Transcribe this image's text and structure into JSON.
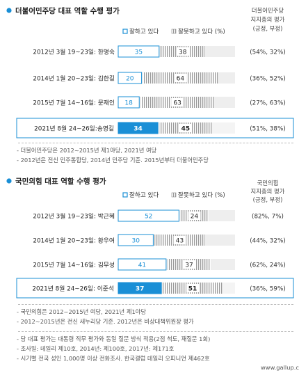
{
  "colors": {
    "accent": "#1a8fd6",
    "good_fill": "#ffffff",
    "good_border": "#1a8fd6",
    "bad_hatch": "#9a9a9a",
    "highlight_fill": "#1a8fd6",
    "highlight_row_border": "#1a8fd6",
    "row_bg": "#eeeeee"
  },
  "chart_data": [
    {
      "type": "bar",
      "stacked": true,
      "orientation": "horizontal",
      "title": "더불어민주당 대표 역할 수행 평가",
      "legend": [
        "잘하고 있다",
        "잘못하고 있다 (%)"
      ],
      "side_header_lines": [
        "더불어민주당",
        "지지층의 평가",
        "(긍정, 부정)"
      ],
      "categories": [
        "2012년 3월 19~23일: 한명숙",
        "2014년 1월 20~23일: 김한길",
        "2015년 7월 14~16일: 문재인",
        "2021년 8월 24~26일:송영길"
      ],
      "series": [
        {
          "name": "잘하고 있다",
          "values": [
            35,
            20,
            18,
            34
          ]
        },
        {
          "name": "잘못하고 있다 (%)",
          "values": [
            38,
            64,
            63,
            45
          ]
        }
      ],
      "supporter_eval": [
        "(54%, 32%)",
        "(36%, 52%)",
        "(27%, 63%)",
        "(51%, 38%)"
      ],
      "highlight_index": 3,
      "xlim": [
        0,
        100
      ]
    },
    {
      "type": "bar",
      "stacked": true,
      "orientation": "horizontal",
      "title": "국민의힘 대표 역할 수행 평가",
      "legend": [
        "잘하고 있다",
        "잘못하고 있다 (%)"
      ],
      "side_header_lines": [
        "국민의힘",
        "지지층의 평가",
        "(긍정, 부정)"
      ],
      "categories": [
        "2012년 3월 19~23일: 박근혜",
        "2014년 1월 20~23일: 황우여",
        "2015년 7월 14~16일: 김무성",
        "2021년 8월 24~26일: 이준석"
      ],
      "series": [
        {
          "name": "잘하고 있다",
          "values": [
            52,
            30,
            41,
            37
          ]
        },
        {
          "name": "잘못하고 있다 (%)",
          "values": [
            24,
            43,
            37,
            51
          ]
        }
      ],
      "supporter_eval": [
        "(82%,  7%)",
        "(44%, 32%)",
        "(62%, 24%)",
        "(36%, 59%)"
      ],
      "highlight_index": 3,
      "xlim": [
        0,
        100
      ]
    }
  ],
  "notes": {
    "dem": [
      "- 더불어민주당은 2012~2015년 제1야당, 2021년 여당",
      "- 2012년은 전신 민주통합당, 2014년 민주당 기준. 2015년부터 더불어민주당"
    ],
    "ppp": [
      "- 국민의힘은 2012~2015년 여당, 2021년 제1야당",
      "- 2012~2015년은 전신 새누리당 기준. 2012년은 비상대책위원장 평가"
    ],
    "footer": [
      "- 당 대표 평가는 대통령 직무 평가와 동일 질문 방식 적용(2점 척도, 재질문 1회)",
      "- 조사일: 데일리 제10호, 2014년: 제100호, 2017년: 제171호",
      "- 시기별 전국 성인 1,000명 이상 전화조사. 한국갤럽 데일리 오피니언 제462호"
    ],
    "url": "www.gallup.co.kr"
  }
}
